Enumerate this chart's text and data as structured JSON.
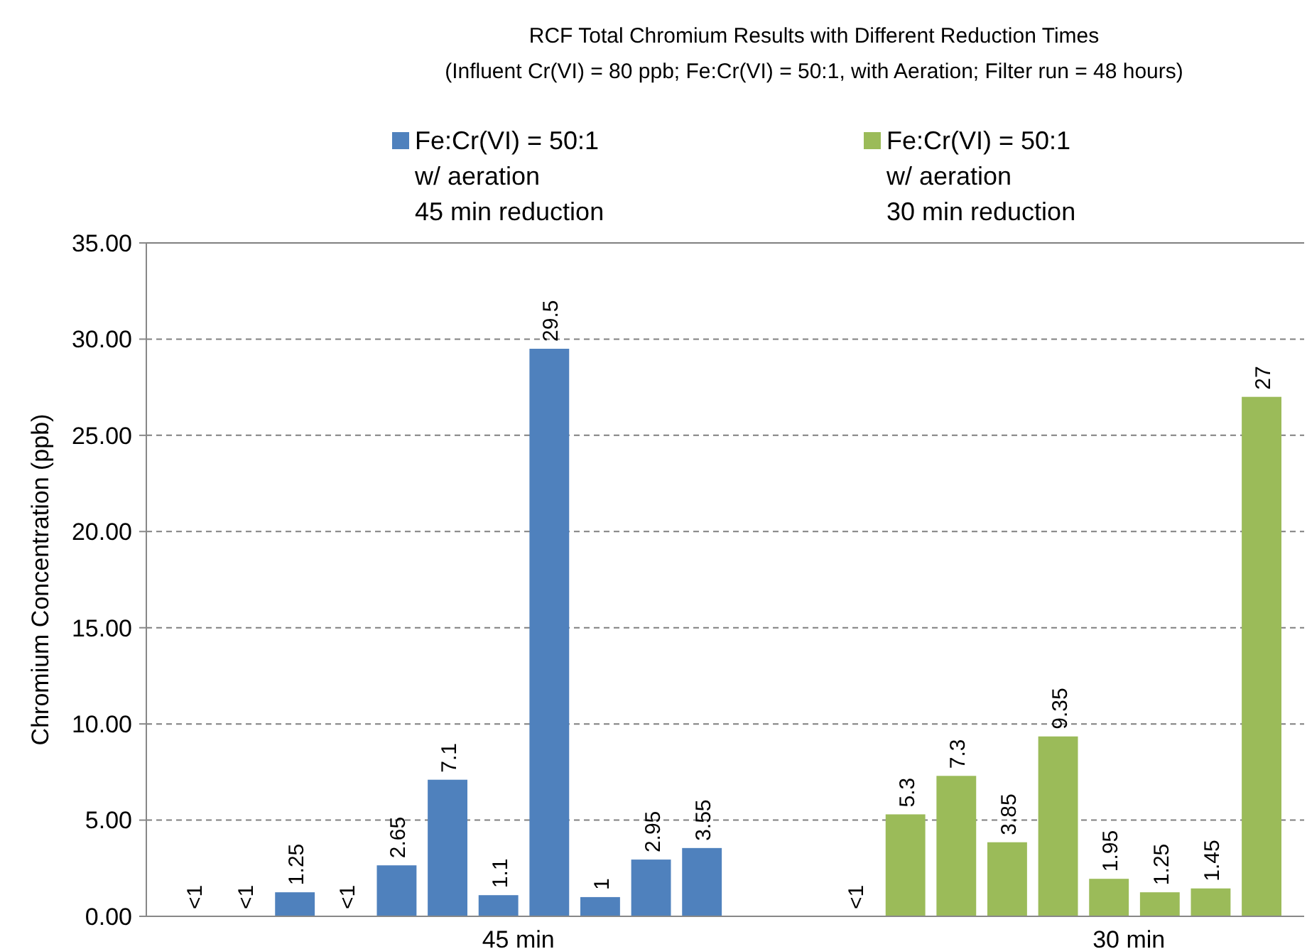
{
  "chart_data": {
    "type": "bar",
    "title": "RCF Total Chromium Results with Different Reduction Times",
    "subtitle": "(Influent Cr(VI) = 80 ppb; Fe:Cr(VI) = 50:1, with Aeration; Filter run = 48 hours)",
    "ylabel": "Chromium Concentration (ppb)",
    "categories": [
      null,
      null,
      null,
      null,
      null,
      null,
      "45 min",
      null,
      null,
      null,
      null,
      null,
      null,
      null,
      null,
      null,
      null,
      null,
      "30 min",
      null,
      null,
      null
    ],
    "series": [
      {
        "name": "Fe:Cr(VI) = 50:1\nw/ aeration\n45 min reduction",
        "color": "#4f81bd",
        "values": [
          null,
          null,
          1.25,
          null,
          2.65,
          7.1,
          1.1,
          29.5,
          1,
          2.95,
          3.55,
          null,
          null,
          null,
          null,
          null,
          null,
          null,
          null,
          null,
          null,
          null
        ],
        "value_labels": [
          "<1",
          "<1",
          "1.25",
          "<1",
          "2.65",
          "7.1",
          "1.1",
          "29.5",
          "1",
          "2.95",
          "3.55",
          null,
          null,
          null,
          null,
          null,
          null,
          null,
          null,
          null,
          null,
          null
        ]
      },
      {
        "name": "Fe:Cr(VI) = 50:1\nw/ aeration\n30 min reduction",
        "color": "#9bbb59",
        "values": [
          null,
          null,
          null,
          null,
          null,
          null,
          null,
          null,
          null,
          null,
          null,
          null,
          null,
          null,
          5.3,
          7.3,
          3.85,
          9.35,
          1.95,
          1.25,
          1.45,
          27
        ],
        "value_labels": [
          null,
          null,
          null,
          null,
          null,
          null,
          null,
          null,
          null,
          null,
          null,
          null,
          null,
          "<1",
          "5.3",
          "7.3",
          "3.85",
          "9.35",
          "1.95",
          "1.25",
          "1.45",
          "27"
        ]
      }
    ],
    "ylim": [
      0,
      35
    ],
    "yticks": [
      {
        "value": 0,
        "label": "0.00"
      },
      {
        "value": 5,
        "label": "5.00"
      },
      {
        "value": 10,
        "label": "10.00"
      },
      {
        "value": 15,
        "label": "15.00"
      },
      {
        "value": 20,
        "label": "20.00"
      },
      {
        "value": 25,
        "label": "25.00"
      },
      {
        "value": 30,
        "label": "30.00"
      },
      {
        "value": 35,
        "label": "35.00"
      }
    ],
    "grid": "y",
    "legend": "top"
  }
}
